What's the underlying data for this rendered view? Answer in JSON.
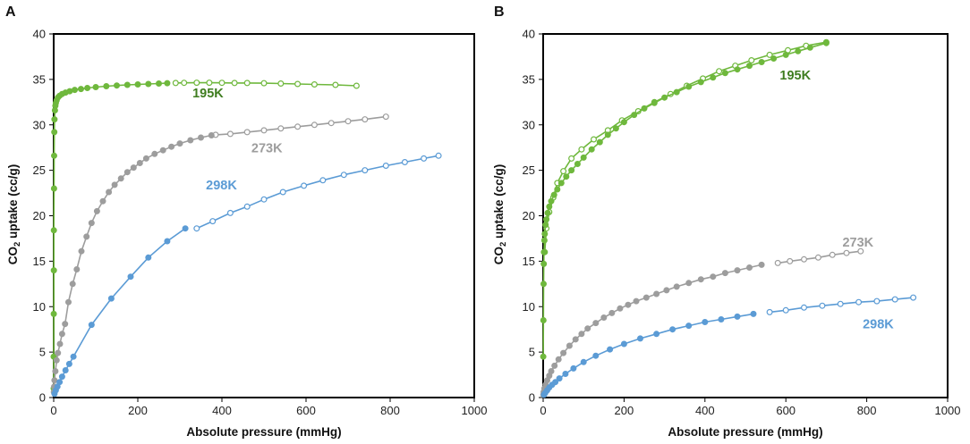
{
  "chart_data": [
    {
      "type": "line",
      "panel": "A",
      "xlabel": "Absolute pressure (mmHg)",
      "ylabel_main": "CO",
      "ylabel_sub": "2",
      "ylabel_rest": " uptake (cc/g)",
      "xlim": [
        0,
        1000
      ],
      "ylim": [
        0,
        40
      ],
      "xticks": [
        0,
        200,
        400,
        600,
        800,
        1000
      ],
      "yticks": [
        0,
        5,
        10,
        15,
        20,
        25,
        30,
        35,
        40
      ],
      "grid": false,
      "series": [
        {
          "name": "195K",
          "color": "#6fb83d",
          "label_color": "#3f7d20",
          "label_at": [
            330,
            33.0
          ],
          "adsorption": {
            "x": [
              0.05,
              0.1,
              0.2,
              0.35,
              0.5,
              0.8,
              1,
              1.5,
              2,
              3,
              4,
              5,
              7,
              10,
              14,
              20,
              28,
              38,
              50,
              65,
              80,
              100,
              125,
              150,
              175,
              200,
              225,
              250,
              270
            ],
            "y": [
              1.0,
              4.5,
              9.2,
              14.0,
              18.4,
              23.0,
              26.6,
              29.2,
              30.6,
              31.6,
              32.1,
              32.4,
              32.7,
              33.0,
              33.2,
              33.4,
              33.55,
              33.7,
              33.85,
              33.95,
              34.05,
              34.15,
              34.25,
              34.33,
              34.4,
              34.45,
              34.5,
              34.55,
              34.58
            ]
          },
          "desorption": {
            "x": [
              720,
              670,
              620,
              580,
              540,
              500,
              460,
              430,
              400,
              370,
              340,
              310,
              290
            ],
            "y": [
              34.3,
              34.4,
              34.45,
              34.5,
              34.55,
              34.58,
              34.6,
              34.6,
              34.62,
              34.63,
              34.63,
              34.62,
              34.6
            ]
          }
        },
        {
          "name": "273K",
          "color": "#9d9d9d",
          "label_color": "#9d9d9d",
          "label_at": [
            470,
            27.0
          ],
          "adsorption": {
            "x": [
              0.5,
              1,
              2,
              4,
              7,
              10,
              15,
              20,
              27,
              35,
              45,
              55,
              66,
              78,
              90,
              103,
              117,
              131,
              145,
              160,
              175,
              190,
              205,
              220,
              240,
              260,
              280,
              300,
              325,
              350,
              375
            ],
            "y": [
              0.6,
              1.2,
              1.9,
              2.9,
              4.1,
              4.9,
              5.9,
              7.0,
              8.1,
              10.5,
              12.5,
              14.1,
              16.1,
              17.7,
              19.2,
              20.5,
              21.6,
              22.6,
              23.4,
              24.1,
              24.8,
              25.3,
              25.8,
              26.3,
              26.8,
              27.2,
              27.6,
              27.95,
              28.3,
              28.6,
              28.85
            ]
          },
          "desorption": {
            "x": [
              790,
              740,
              700,
              660,
              620,
              580,
              540,
              500,
              460,
              420,
              385
            ],
            "y": [
              30.9,
              30.6,
              30.4,
              30.2,
              30.0,
              29.8,
              29.6,
              29.4,
              29.2,
              29.0,
              28.9
            ]
          }
        },
        {
          "name": "298K",
          "color": "#5b9bd5",
          "label_color": "#5b9bd5",
          "label_at": [
            362,
            22.9
          ],
          "adsorption": {
            "x": [
              2,
              5,
              9,
              14,
              20,
              28,
              37,
              47,
              90,
              137,
              183,
              225,
              270,
              313
            ],
            "y": [
              0.4,
              0.8,
              1.2,
              1.7,
              2.3,
              3.0,
              3.7,
              4.5,
              8.0,
              10.9,
              13.3,
              15.4,
              17.2,
              18.6
            ]
          },
          "desorption": {
            "x": [
              915,
              880,
              835,
              790,
              740,
              690,
              640,
              595,
              545,
              500,
              460,
              420,
              378,
              340
            ],
            "y": [
              26.6,
              26.3,
              25.9,
              25.5,
              25.0,
              24.5,
              23.9,
              23.3,
              22.6,
              21.8,
              21.0,
              20.3,
              19.4,
              18.6
            ]
          }
        }
      ]
    },
    {
      "type": "line",
      "panel": "B",
      "xlabel": "Absolute pressure (mmHg)",
      "ylabel_main": "CO",
      "ylabel_sub": "2",
      "ylabel_rest": " uptake (cc/g)",
      "xlim": [
        0,
        1000
      ],
      "ylim": [
        0,
        40
      ],
      "xticks": [
        0,
        200,
        400,
        600,
        800,
        1000
      ],
      "yticks": [
        0,
        5,
        10,
        15,
        20,
        25,
        30,
        35,
        40
      ],
      "grid": false,
      "series": [
        {
          "name": "195K",
          "color": "#6fb83d",
          "label_color": "#3f7d20",
          "label_at": [
            585,
            35.0
          ],
          "adsorption": {
            "x": [
              0.3,
              0.6,
              1,
              1.5,
              2,
              3,
              4,
              6,
              8,
              11,
              15,
              20,
              27,
              35,
              45,
              57,
              70,
              85,
              100,
              120,
              140,
              160,
              180,
              200,
              225,
              250,
              275,
              300,
              330,
              360,
              390,
              420,
              450,
              480,
              510,
              540,
              570,
              600,
              630,
              660,
              700
            ],
            "y": [
              4.5,
              8.5,
              12.5,
              14.7,
              16.0,
              17.3,
              18.0,
              19.0,
              19.6,
              20.3,
              21.0,
              21.6,
              22.3,
              22.9,
              23.6,
              24.3,
              25.0,
              25.7,
              26.4,
              27.3,
              28.1,
              28.9,
              29.6,
              30.3,
              31.1,
              31.8,
              32.4,
              33.0,
              33.6,
              34.2,
              34.7,
              35.2,
              35.7,
              36.1,
              36.5,
              36.9,
              37.3,
              37.7,
              38.1,
              38.5,
              39.0
            ]
          },
          "desorption": {
            "x": [
              700,
              650,
              605,
              560,
              515,
              475,
              435,
              395,
              355,
              315,
              275,
              235,
              195,
              160,
              125,
              95,
              70,
              50,
              35,
              25,
              15,
              8,
              4
            ],
            "y": [
              39.1,
              38.7,
              38.2,
              37.7,
              37.1,
              36.5,
              35.9,
              35.1,
              34.3,
              33.4,
              32.5,
              31.5,
              30.5,
              29.4,
              28.4,
              27.3,
              26.3,
              24.9,
              23.6,
              22.0,
              20.4,
              18.6,
              16.0
            ]
          }
        },
        {
          "name": "273K",
          "color": "#9d9d9d",
          "label_color": "#9d9d9d",
          "label_at": [
            740,
            16.6
          ],
          "adsorption": {
            "x": [
              0.5,
              1,
              3,
              6,
              10,
              15,
              20,
              28,
              38,
              50,
              65,
              80,
              95,
              110,
              130,
              150,
              170,
              190,
              210,
              230,
              255,
              280,
              305,
              330,
              360,
              390,
              420,
              450,
              480,
              510,
              540
            ],
            "y": [
              0.3,
              0.6,
              1.0,
              1.4,
              1.9,
              2.4,
              2.9,
              3.5,
              4.2,
              4.9,
              5.7,
              6.4,
              7.0,
              7.6,
              8.2,
              8.8,
              9.3,
              9.8,
              10.2,
              10.6,
              11.0,
              11.4,
              11.8,
              12.2,
              12.6,
              13.0,
              13.3,
              13.7,
              14.0,
              14.3,
              14.6
            ]
          },
          "desorption": {
            "x": [
              785,
              750,
              715,
              680,
              645,
              610,
              580
            ],
            "y": [
              16.1,
              15.9,
              15.7,
              15.4,
              15.2,
              15.0,
              14.8
            ]
          }
        },
        {
          "name": "298K",
          "color": "#5b9bd5",
          "label_color": "#5b9bd5",
          "label_at": [
            790,
            7.6
          ],
          "adsorption": {
            "x": [
              2,
              5,
              10,
              15,
              22,
              30,
              40,
              55,
              75,
              100,
              130,
              165,
              200,
              240,
              280,
              320,
              360,
              400,
              440,
              480,
              520
            ],
            "y": [
              0.3,
              0.5,
              0.8,
              1.1,
              1.4,
              1.7,
              2.1,
              2.6,
              3.2,
              3.9,
              4.6,
              5.3,
              5.9,
              6.5,
              7.0,
              7.5,
              7.9,
              8.3,
              8.6,
              8.9,
              9.2
            ]
          },
          "desorption": {
            "x": [
              915,
              870,
              825,
              780,
              735,
              690,
              645,
              600,
              560
            ],
            "y": [
              11.0,
              10.8,
              10.6,
              10.5,
              10.3,
              10.1,
              9.9,
              9.6,
              9.4
            ]
          }
        }
      ]
    }
  ]
}
